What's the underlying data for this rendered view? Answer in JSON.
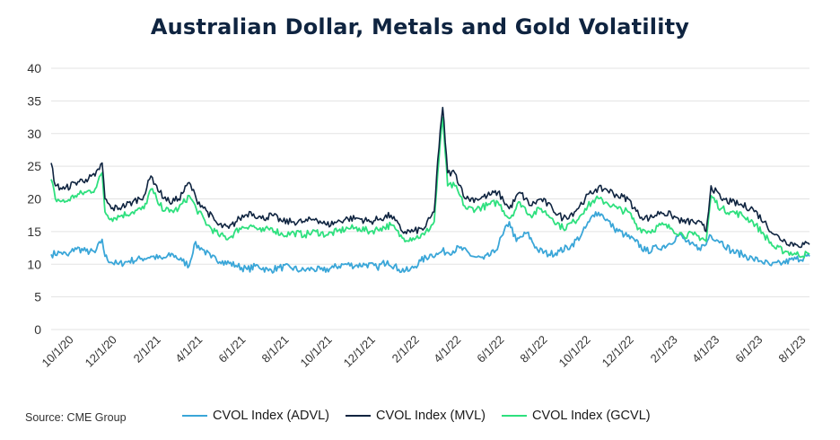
{
  "source": "Source: CME Group",
  "colors": {
    "ADVL": "#3aa6d8",
    "MVL": "#0f2440",
    "GCVL": "#2ee07e",
    "grid": "#e3e3e3",
    "tick": "#333333"
  },
  "chart_data": {
    "type": "line",
    "title": "Australian Dollar, Metals and Gold Volatility",
    "xlabel": "",
    "ylabel": "",
    "ylim": [
      0,
      40
    ],
    "yticks": [
      0,
      5,
      10,
      15,
      20,
      25,
      30,
      35,
      40
    ],
    "xlim": [
      "2020-09-01",
      "2023-08-08"
    ],
    "xtick_labels": [
      "10/1/20",
      "12/1/20",
      "2/1/21",
      "4/1/21",
      "6/1/21",
      "8/1/21",
      "10/1/21",
      "12/1/21",
      "2/1/22",
      "4/1/22",
      "6/1/22",
      "8/1/22",
      "10/1/22",
      "12/1/22",
      "2/1/23",
      "4/1/23",
      "6/1/23",
      "8/1/23"
    ],
    "xtick_dates": [
      "2020-10-01",
      "2020-12-01",
      "2021-02-01",
      "2021-04-01",
      "2021-06-01",
      "2021-08-01",
      "2021-10-01",
      "2021-12-01",
      "2022-02-01",
      "2022-04-01",
      "2022-06-01",
      "2022-08-01",
      "2022-10-01",
      "2022-12-01",
      "2023-02-01",
      "2023-04-01",
      "2023-06-01",
      "2023-08-01"
    ],
    "grid": true,
    "legend_position": "bottom",
    "series": [
      {
        "name": "CVOL Index (ADVL)",
        "key": "ADVL",
        "x": [
          "2020-09-01",
          "2020-09-15",
          "2020-09-25",
          "2020-10-05",
          "2020-10-20",
          "2020-11-02",
          "2020-11-12",
          "2020-11-16",
          "2020-11-25",
          "2020-12-05",
          "2020-12-20",
          "2021-01-05",
          "2021-01-20",
          "2021-02-05",
          "2021-02-20",
          "2021-03-05",
          "2021-03-15",
          "2021-03-22",
          "2021-04-01",
          "2021-04-15",
          "2021-05-01",
          "2021-05-20",
          "2021-06-05",
          "2021-06-20",
          "2021-07-05",
          "2021-07-20",
          "2021-08-05",
          "2021-08-20",
          "2021-09-05",
          "2021-09-20",
          "2021-10-05",
          "2021-10-20",
          "2021-11-05",
          "2021-11-20",
          "2021-12-05",
          "2021-12-20",
          "2022-01-05",
          "2022-01-20",
          "2022-02-05",
          "2022-02-20",
          "2022-03-01",
          "2022-03-07",
          "2022-03-15",
          "2022-04-01",
          "2022-04-20",
          "2022-05-05",
          "2022-05-20",
          "2022-06-01",
          "2022-06-10",
          "2022-06-20",
          "2022-07-05",
          "2022-07-20",
          "2022-08-05",
          "2022-08-20",
          "2022-09-05",
          "2022-09-20",
          "2022-10-01",
          "2022-10-10",
          "2022-10-20",
          "2022-11-05",
          "2022-11-20",
          "2022-12-05",
          "2022-12-20",
          "2023-01-05",
          "2023-01-20",
          "2023-02-05",
          "2023-02-20",
          "2023-03-05",
          "2023-03-15",
          "2023-03-20",
          "2023-04-05",
          "2023-04-20",
          "2023-05-05",
          "2023-05-20",
          "2023-06-01",
          "2023-06-15",
          "2023-07-01",
          "2023-07-20",
          "2023-08-08"
        ],
        "values": [
          11.5,
          11.8,
          11.3,
          12.5,
          12.0,
          11.8,
          13.8,
          11.2,
          10.3,
          10.0,
          10.5,
          10.8,
          11.2,
          10.8,
          11.5,
          10.5,
          9.8,
          13.0,
          12.5,
          11.0,
          10.5,
          9.8,
          9.2,
          9.8,
          9.0,
          9.5,
          9.5,
          9.0,
          9.3,
          9.0,
          9.5,
          10.0,
          9.8,
          10.0,
          9.5,
          10.5,
          9.2,
          9.0,
          10.5,
          11.5,
          11.5,
          12.0,
          11.8,
          12.5,
          11.2,
          10.8,
          11.8,
          14.5,
          16.5,
          13.5,
          14.8,
          12.2,
          11.5,
          12.0,
          12.8,
          14.5,
          16.5,
          18.0,
          17.5,
          15.5,
          14.5,
          13.5,
          12.0,
          12.5,
          13.0,
          14.5,
          13.0,
          12.5,
          13.0,
          14.5,
          13.5,
          12.0,
          11.5,
          10.8,
          10.5,
          9.8,
          10.2,
          10.8,
          11.2
        ]
      },
      {
        "name": "CVOL Index (MVL)",
        "key": "MVL",
        "x": [
          "2020-09-01",
          "2020-09-07",
          "2020-09-20",
          "2020-10-05",
          "2020-10-20",
          "2020-11-02",
          "2020-11-12",
          "2020-11-16",
          "2020-11-25",
          "2020-12-10",
          "2020-12-25",
          "2021-01-10",
          "2021-01-20",
          "2021-01-28",
          "2021-02-01",
          "2021-02-15",
          "2021-02-28",
          "2021-03-15",
          "2021-03-25",
          "2021-04-10",
          "2021-04-25",
          "2021-05-10",
          "2021-05-25",
          "2021-06-10",
          "2021-06-25",
          "2021-07-10",
          "2021-07-25",
          "2021-08-10",
          "2021-08-25",
          "2021-09-10",
          "2021-09-25",
          "2021-10-10",
          "2021-10-25",
          "2021-11-10",
          "2021-11-25",
          "2021-12-10",
          "2021-12-25",
          "2022-01-10",
          "2022-01-25",
          "2022-02-10",
          "2022-02-24",
          "2022-03-01",
          "2022-03-08",
          "2022-03-15",
          "2022-03-25",
          "2022-04-10",
          "2022-04-25",
          "2022-05-10",
          "2022-05-25",
          "2022-06-10",
          "2022-06-25",
          "2022-07-10",
          "2022-07-25",
          "2022-08-10",
          "2022-08-25",
          "2022-09-10",
          "2022-09-25",
          "2022-10-10",
          "2022-10-25",
          "2022-11-10",
          "2022-11-25",
          "2022-12-10",
          "2022-12-25",
          "2023-01-10",
          "2023-01-25",
          "2023-02-10",
          "2023-02-25",
          "2023-03-10",
          "2023-03-15",
          "2023-03-22",
          "2023-04-05",
          "2023-04-20",
          "2023-05-05",
          "2023-05-20",
          "2023-06-05",
          "2023-06-20",
          "2023-07-05",
          "2023-07-20",
          "2023-08-08"
        ],
        "values": [
          25.5,
          22.0,
          21.5,
          22.5,
          23.0,
          23.5,
          25.5,
          20.0,
          18.5,
          18.8,
          19.5,
          20.5,
          23.5,
          22.0,
          21.0,
          19.5,
          20.0,
          22.5,
          20.0,
          18.0,
          16.0,
          15.5,
          17.0,
          18.0,
          17.0,
          17.5,
          16.5,
          16.5,
          16.5,
          17.0,
          16.0,
          16.5,
          17.0,
          17.0,
          16.5,
          17.0,
          17.5,
          15.0,
          15.0,
          15.5,
          18.0,
          26.0,
          34.0,
          24.0,
          24.0,
          20.0,
          20.0,
          20.5,
          21.0,
          18.5,
          21.0,
          19.0,
          20.0,
          18.5,
          17.0,
          18.0,
          20.0,
          21.5,
          21.5,
          20.5,
          20.0,
          17.5,
          17.0,
          18.0,
          17.5,
          16.5,
          16.5,
          16.0,
          15.0,
          22.0,
          20.0,
          19.5,
          19.0,
          18.5,
          16.5,
          14.5,
          13.5,
          13.0,
          13.0
        ]
      },
      {
        "name": "CVOL Index (GCVL)",
        "key": "GCVL",
        "x": [
          "2020-09-01",
          "2020-09-07",
          "2020-09-20",
          "2020-10-05",
          "2020-10-20",
          "2020-11-02",
          "2020-11-12",
          "2020-11-16",
          "2020-11-25",
          "2020-12-10",
          "2020-12-25",
          "2021-01-10",
          "2021-01-20",
          "2021-01-28",
          "2021-02-01",
          "2021-02-15",
          "2021-02-28",
          "2021-03-15",
          "2021-03-25",
          "2021-04-10",
          "2021-04-25",
          "2021-05-10",
          "2021-05-25",
          "2021-06-10",
          "2021-06-25",
          "2021-07-10",
          "2021-07-25",
          "2021-08-10",
          "2021-08-25",
          "2021-09-10",
          "2021-09-25",
          "2021-10-10",
          "2021-10-25",
          "2021-11-10",
          "2021-11-25",
          "2021-12-10",
          "2021-12-25",
          "2022-01-10",
          "2022-01-25",
          "2022-02-10",
          "2022-02-24",
          "2022-03-01",
          "2022-03-08",
          "2022-03-15",
          "2022-03-25",
          "2022-04-10",
          "2022-04-25",
          "2022-05-10",
          "2022-05-25",
          "2022-06-10",
          "2022-06-25",
          "2022-07-10",
          "2022-07-25",
          "2022-08-10",
          "2022-08-25",
          "2022-09-10",
          "2022-09-25",
          "2022-10-10",
          "2022-10-25",
          "2022-11-10",
          "2022-11-25",
          "2022-12-10",
          "2022-12-25",
          "2023-01-10",
          "2023-01-25",
          "2023-02-10",
          "2023-02-25",
          "2023-03-10",
          "2023-03-15",
          "2023-03-22",
          "2023-04-05",
          "2023-04-20",
          "2023-05-05",
          "2023-05-20",
          "2023-06-05",
          "2023-06-20",
          "2023-07-05",
          "2023-07-20",
          "2023-08-08"
        ],
        "values": [
          23.0,
          20.0,
          19.5,
          20.5,
          21.0,
          21.5,
          24.0,
          18.0,
          17.0,
          17.5,
          18.0,
          18.5,
          21.5,
          20.0,
          19.0,
          18.0,
          18.5,
          20.5,
          18.5,
          16.0,
          14.5,
          14.0,
          15.5,
          16.0,
          15.0,
          15.5,
          14.5,
          14.8,
          14.5,
          15.0,
          14.5,
          15.0,
          15.5,
          15.5,
          15.0,
          15.5,
          16.0,
          14.0,
          14.0,
          14.5,
          16.5,
          24.0,
          32.5,
          22.0,
          22.0,
          18.5,
          18.5,
          19.0,
          19.5,
          17.0,
          19.5,
          17.5,
          18.5,
          17.0,
          15.5,
          16.5,
          18.5,
          20.0,
          19.5,
          18.5,
          18.0,
          15.5,
          15.0,
          16.0,
          15.5,
          14.5,
          14.5,
          14.0,
          13.5,
          20.5,
          18.5,
          18.0,
          17.5,
          16.5,
          14.5,
          12.5,
          12.0,
          11.5,
          11.5
        ]
      }
    ]
  }
}
